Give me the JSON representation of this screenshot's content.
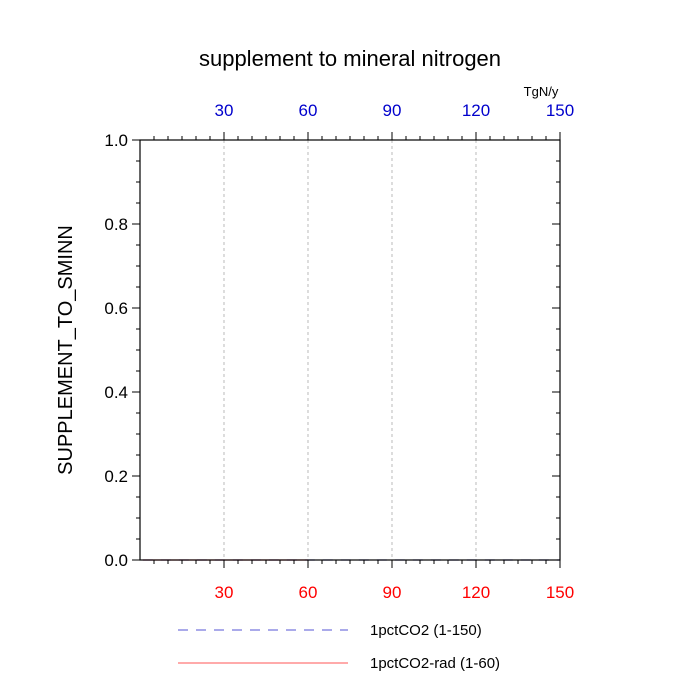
{
  "chart_data": {
    "type": "line",
    "title": "supplement to mineral nitrogen",
    "units": "TgN/y",
    "ylabel": "SUPPLEMENT_TO_SMINN",
    "xlabel": "",
    "xlim": [
      0,
      150
    ],
    "ylim": [
      0,
      1
    ],
    "bottom_x_ticks": [
      "30",
      "60",
      "90",
      "120",
      "150"
    ],
    "top_x_ticks": [
      "30",
      "60",
      "90",
      "120",
      "150"
    ],
    "y_ticks": [
      "0.0",
      "0.2",
      "0.4",
      "0.6",
      "0.8",
      "1.0"
    ],
    "grid": "vertical dashed",
    "legend_placement": "bottom",
    "series": [
      {
        "name": "1pctCO2 (1-150)",
        "color": "#7777dd",
        "dash": "dashed",
        "x": [
          1,
          150
        ],
        "values": [
          0,
          0
        ]
      },
      {
        "name": "1pctCO2-rad (1-60)",
        "color": "#ff7777",
        "dash": "solid",
        "x": [
          1,
          60
        ],
        "values": [
          0,
          0
        ]
      }
    ],
    "colors": {
      "top_axis_labels": "#0000cc",
      "bottom_axis_labels": "#ff0000",
      "grid": "#aaaaaa"
    }
  }
}
